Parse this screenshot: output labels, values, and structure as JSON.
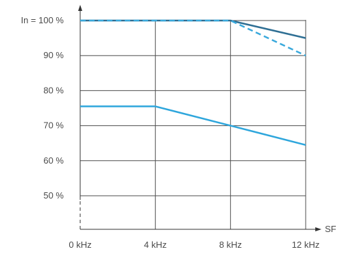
{
  "chart_data": {
    "type": "line",
    "x_unit": "kHz",
    "x": [
      0,
      4,
      8,
      12
    ],
    "x_ticks": [
      "0 kHz",
      "4 kHz",
      "8 kHz",
      "12 kHz"
    ],
    "x_axis_label": "SF",
    "xlim": [
      0,
      12
    ],
    "y_ticks": [
      "In = 100 %",
      "90 %",
      "80 %",
      "70 %",
      "60 %",
      "50 %"
    ],
    "y_tick_values": [
      100,
      90,
      80,
      70,
      60,
      50
    ],
    "ylim": [
      43,
      100
    ],
    "grid": true,
    "series": [
      {
        "style": "solid",
        "color": "#2f6f94",
        "values": [
          100,
          100,
          100,
          95
        ]
      },
      {
        "style": "dashed",
        "color": "#3aa9dc",
        "values": [
          100,
          100,
          100,
          90
        ]
      },
      {
        "style": "solid",
        "color": "#2ea6dc",
        "values": [
          75.5,
          75.5,
          70,
          64.5
        ]
      }
    ]
  }
}
